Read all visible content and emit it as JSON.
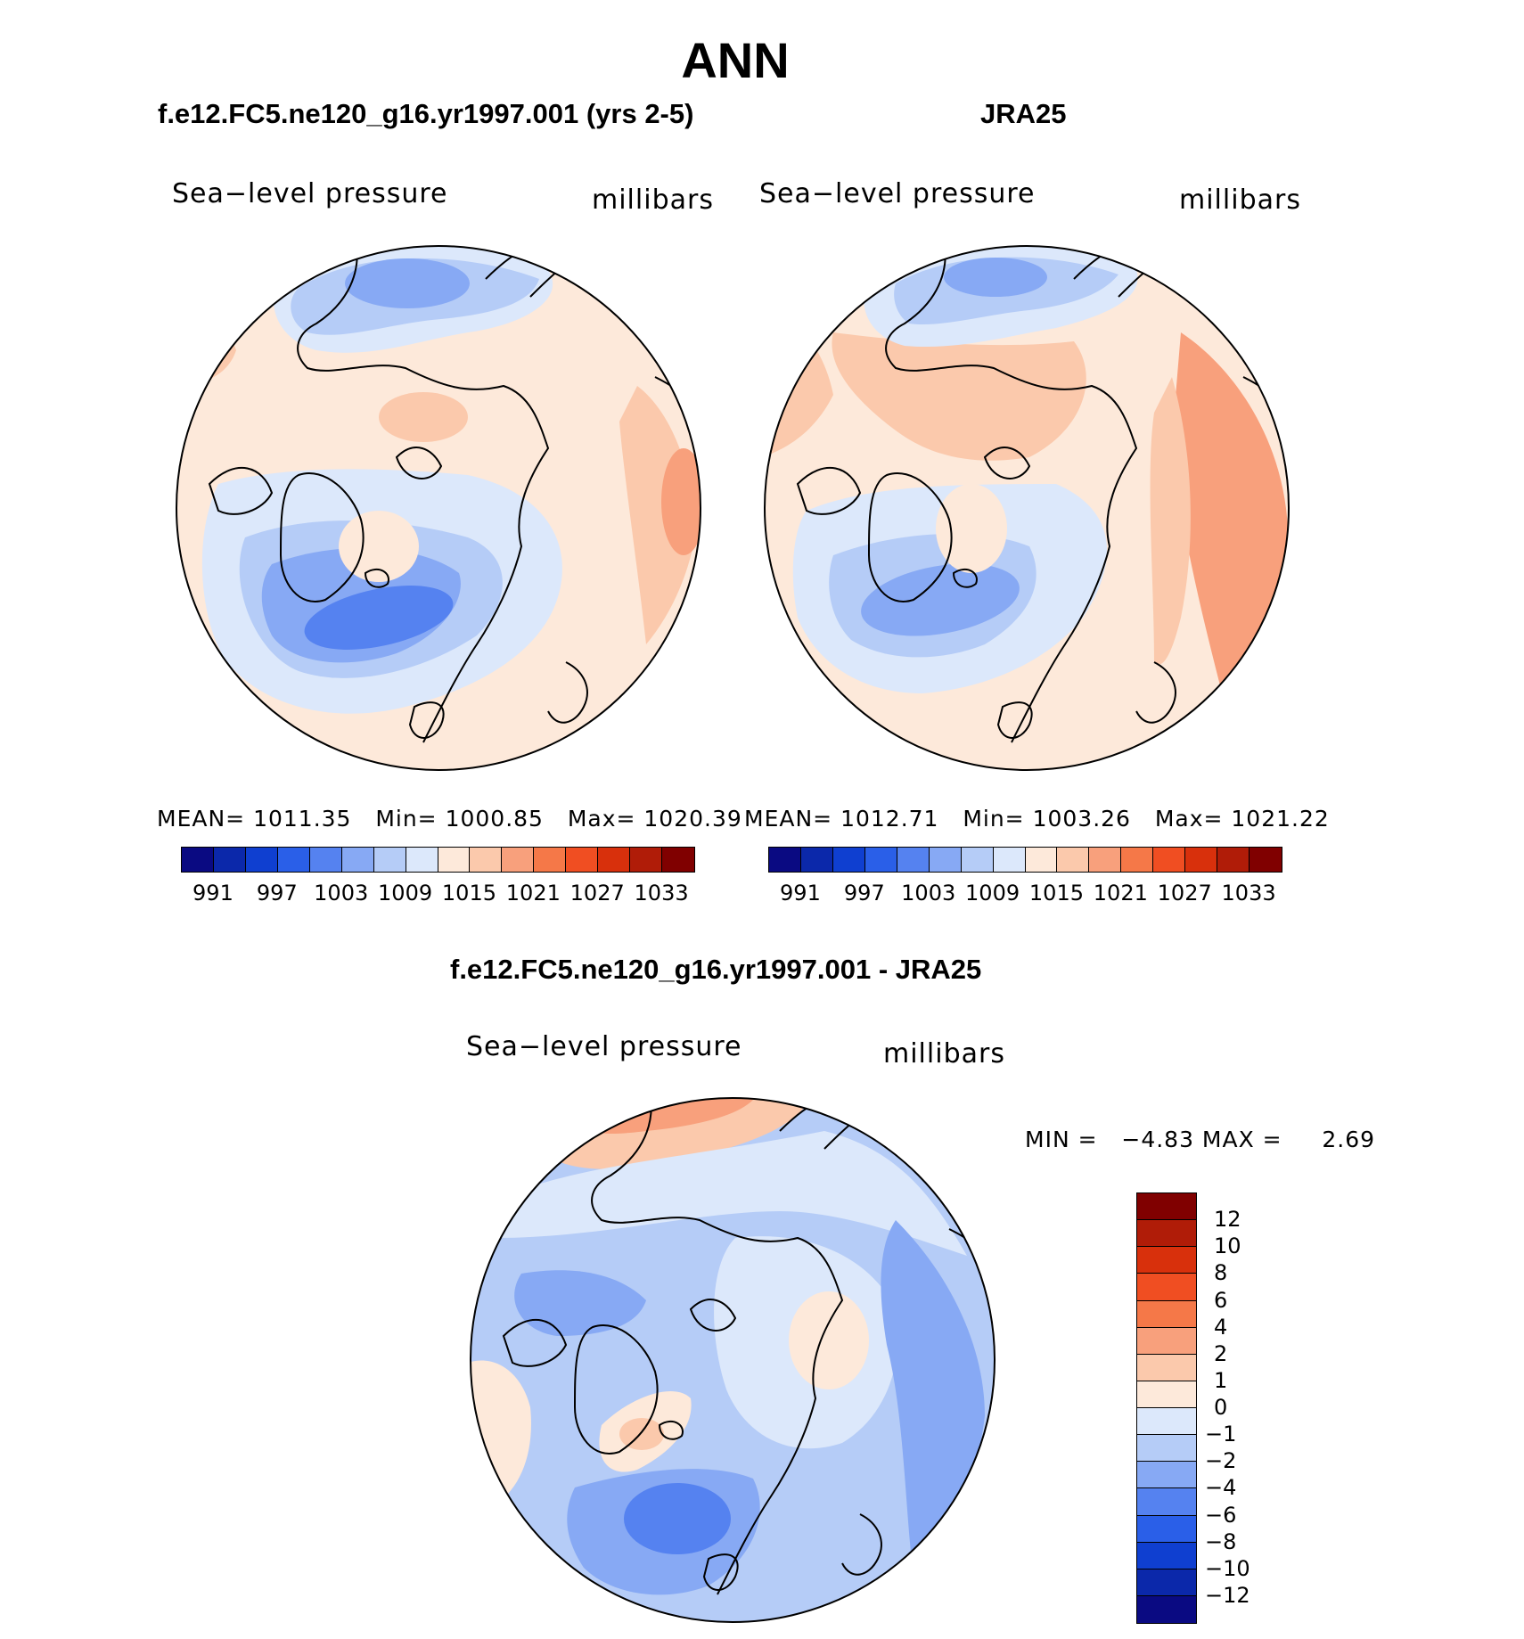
{
  "main_title": "ANN",
  "left_panel": {
    "title": "f.e12.FC5.ne120_g16.yr1997.001 (yrs 2-5)",
    "variable": "Sea−level pressure",
    "units": "millibars",
    "stats": {
      "mean_label": "MEAN=",
      "mean": "1011.35",
      "min_label": "Min=",
      "min": "1000.85",
      "max_label": "Max=",
      "max": "1020.39"
    }
  },
  "right_panel": {
    "title": "JRA25",
    "variable": "Sea−level pressure",
    "units": "millibars",
    "stats": {
      "mean_label": "MEAN=",
      "mean": "1012.71",
      "min_label": "Min=",
      "min": "1003.26",
      "max_label": "Max=",
      "max": "1021.22"
    }
  },
  "diff_panel": {
    "title": "f.e12.FC5.ne120_g16.yr1997.001 - JRA25",
    "variable": "Sea−level pressure",
    "units": "millibars",
    "minmax_text": "MIN =   −4.83 MAX =     2.69"
  },
  "abs_colorbar": {
    "colors": [
      "#0a0a82",
      "#0b28aa",
      "#0f3fd0",
      "#2a5fe8",
      "#5582f0",
      "#87a9f4",
      "#b5ccf7",
      "#dce8fb",
      "#fde9da",
      "#fbc9ac",
      "#f8a07c",
      "#f57848",
      "#f04e22",
      "#d8300c",
      "#b01c08",
      "#800000"
    ],
    "tick_labels": [
      "991",
      "997",
      "1003",
      "1009",
      "1015",
      "1021",
      "1027",
      "1033"
    ]
  },
  "diff_colorbar": {
    "colors_top_to_bottom": [
      "#800000",
      "#b01c08",
      "#d8300c",
      "#f04e22",
      "#f57848",
      "#f8a07c",
      "#fbc9ac",
      "#fde9da",
      "#dce8fb",
      "#b5ccf7",
      "#87a9f4",
      "#5582f0",
      "#2a5fe8",
      "#0f3fd0",
      "#0b28aa",
      "#0a0a82"
    ],
    "tick_labels": [
      "12",
      "10",
      "8",
      "6",
      "4",
      "2",
      "1",
      "0",
      "−1",
      "−2",
      "−4",
      "−6",
      "−8",
      "−10",
      "−12"
    ]
  },
  "colors": {
    "land_outline": "#000000",
    "panel_background": "#ffffff"
  }
}
